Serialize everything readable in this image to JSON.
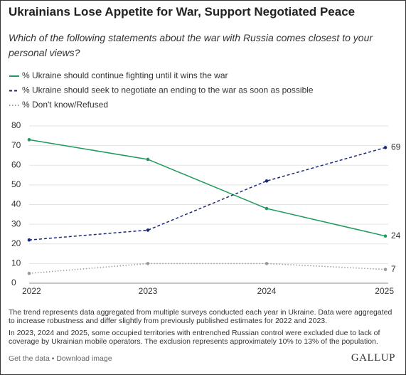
{
  "chart_data": {
    "type": "line",
    "title": "Ukrainians Lose Appetite for War, Support Negotiated Peace",
    "subtitle": "Which of the following statements about the war with Russia comes closest to your personal views?",
    "x": [
      2022,
      2023,
      2024,
      2025
    ],
    "xlim": [
      2022,
      2025
    ],
    "xticks": [
      2022,
      2023,
      2024,
      2025
    ],
    "ylim": [
      0,
      80
    ],
    "yticks": [
      0,
      10,
      20,
      30,
      40,
      50,
      60,
      70,
      80
    ],
    "grid": true,
    "series": [
      {
        "name": "% Ukraine should continue fighting until it wins the war",
        "color": "#1e9a5a",
        "line_style": "solid",
        "values": [
          73,
          63,
          38,
          24
        ]
      },
      {
        "name": "% Ukraine should seek to negotiate an ending to the war as soon as possible",
        "color": "#1a2a7a",
        "line_style": "dashed",
        "values": [
          22,
          27,
          52,
          69
        ]
      },
      {
        "name": "% Don't know/Refused",
        "color": "#9a9a9a",
        "line_style": "dotted",
        "values": [
          5,
          10,
          10,
          7
        ]
      }
    ]
  },
  "notes": [
    "The trend represents data aggregated from multiple surveys conducted each year in Ukraine. Data were aggregated to increase robustness and differ slightly from previously published estimates for 2022 and 2023.",
    "In 2023, 2024 and 2025, some occupied territories with entrenched Russian control were excluded due to lack of coverage by Ukrainian mobile operators. The exclusion represents approximately 10% to 13% of the population."
  ],
  "footer": {
    "links": [
      "Get the data",
      "Download image"
    ],
    "separator": "•",
    "brand": "GALLUP"
  }
}
